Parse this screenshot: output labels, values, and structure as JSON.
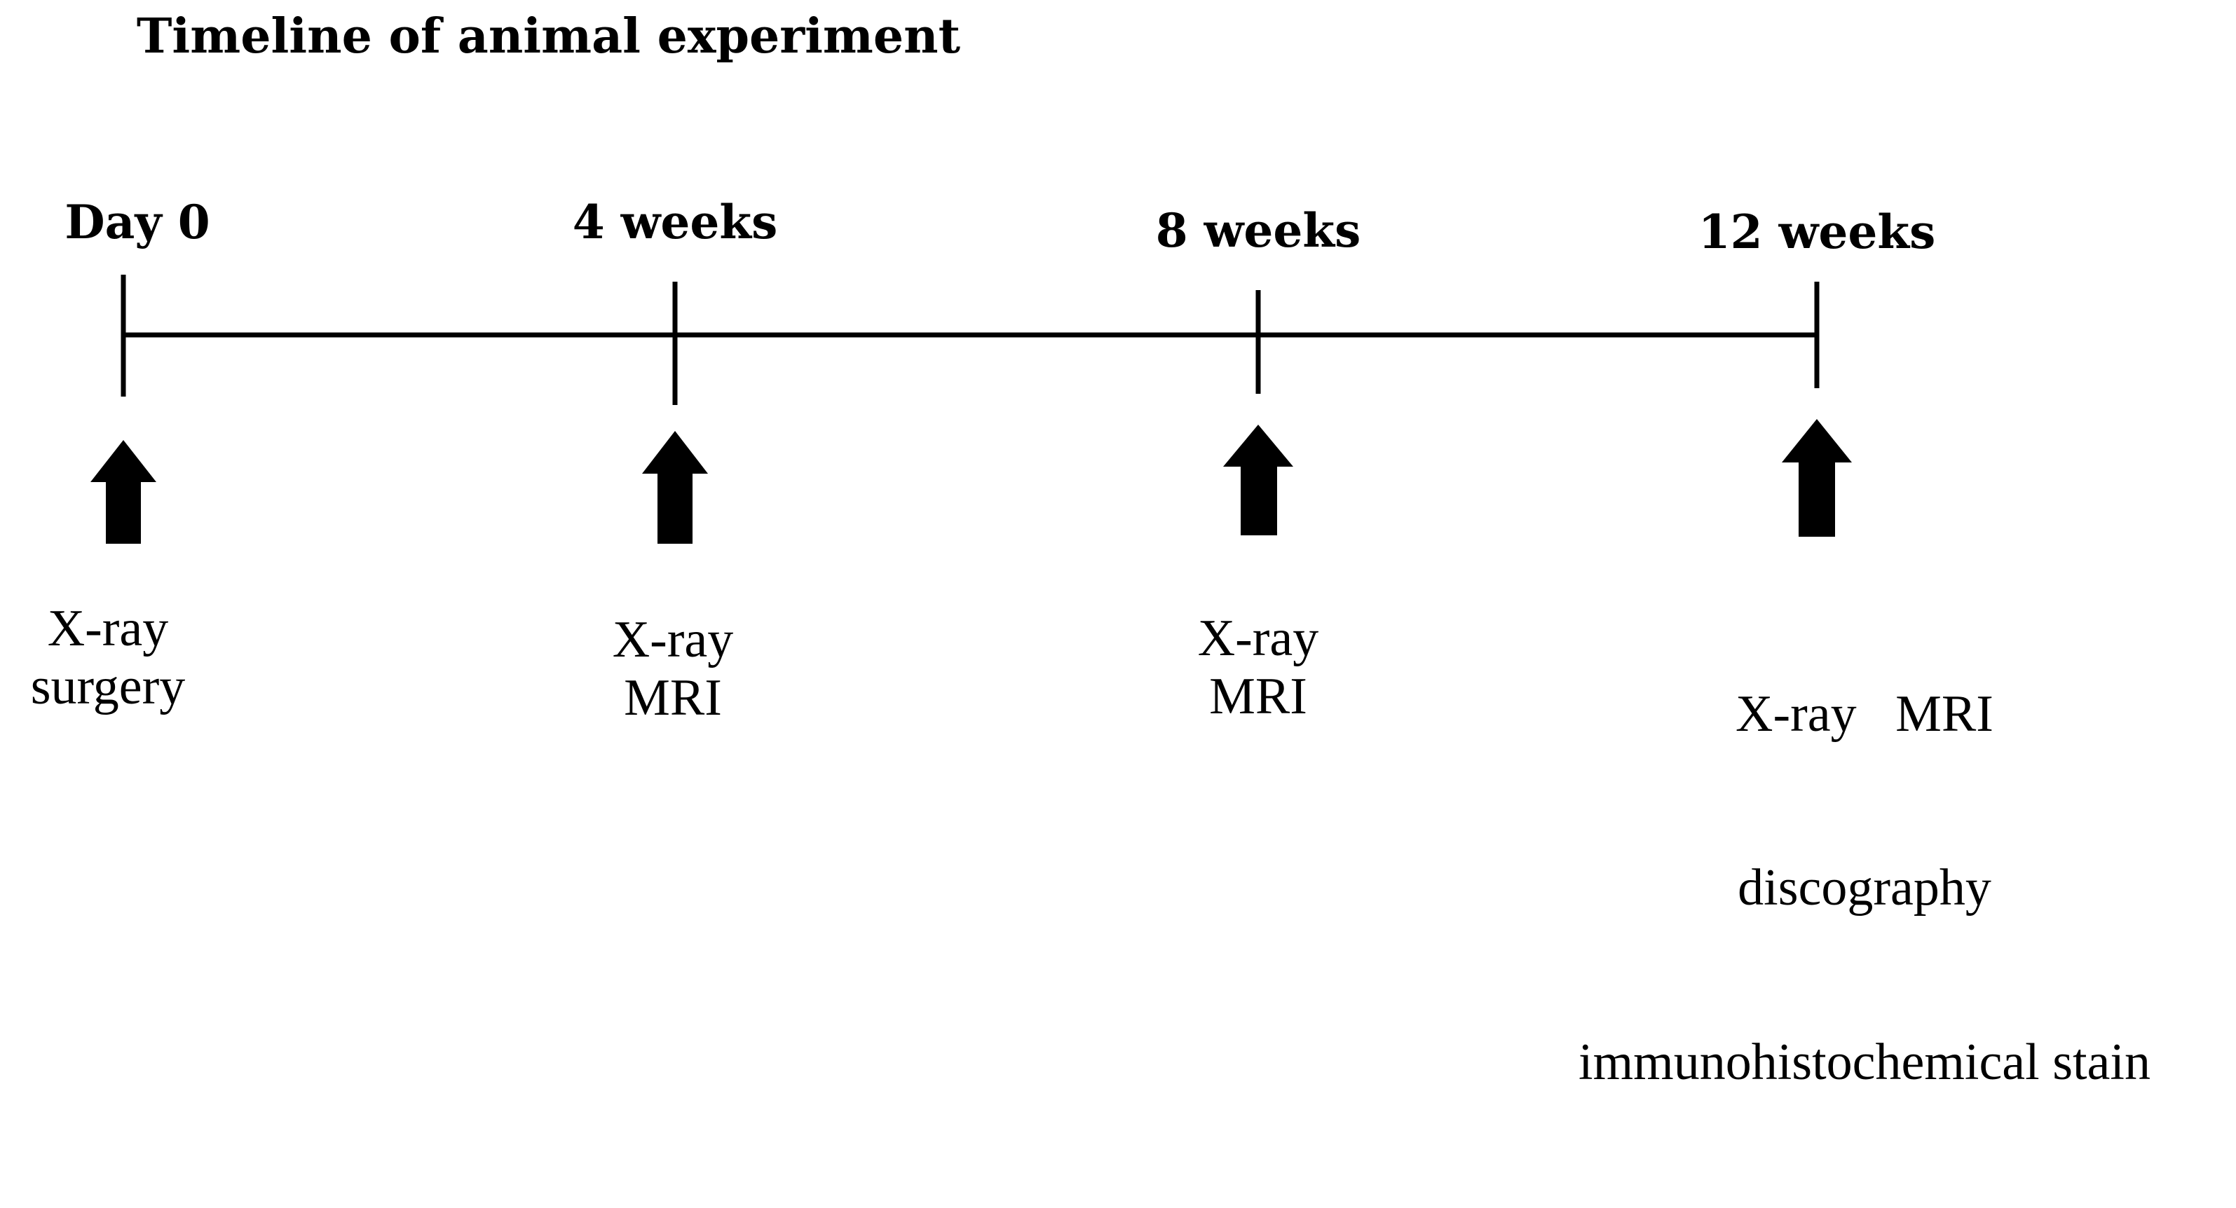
{
  "title": "Timeline of animal experiment",
  "timepoints": [
    {
      "label": "Day 0",
      "notes": [
        "X-ray",
        "surgery"
      ]
    },
    {
      "label": "4 weeks",
      "notes": [
        "X-ray",
        "MRI"
      ]
    },
    {
      "label": "8 weeks",
      "notes": [
        "X-ray",
        "MRI"
      ]
    },
    {
      "label": "12 weeks",
      "notes": [
        "X-ray   MRI",
        "discography",
        "immunohistochemical stain"
      ]
    }
  ],
  "colors": {
    "line": "#000000",
    "arrow": "#000000",
    "text": "#000000"
  }
}
